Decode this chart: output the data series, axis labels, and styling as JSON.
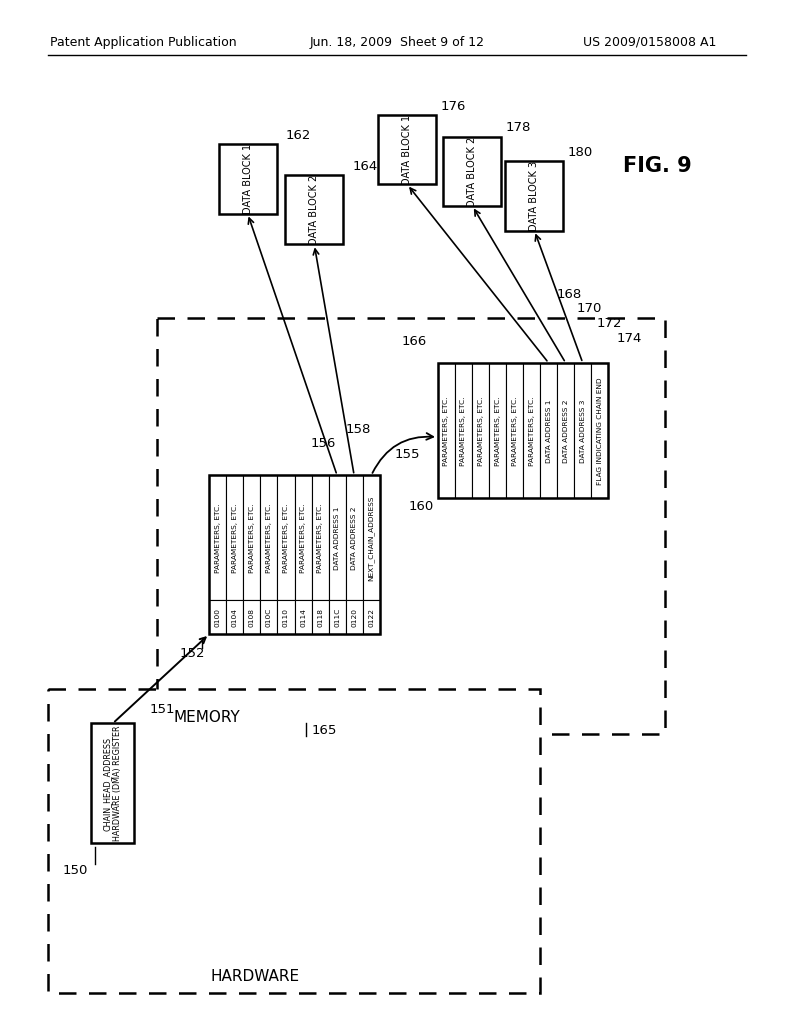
{
  "header_left": "Patent Application Publication",
  "header_center": "Jun. 18, 2009  Sheet 9 of 12",
  "header_right": "US 2009/0158008 A1",
  "bg_color": "#ffffff",
  "table1_rows": [
    [
      "0100",
      "PARAMETERS, ETC."
    ],
    [
      "0104",
      "PARAMETERS, ETC."
    ],
    [
      "0108",
      "PARAMETERS, ETC."
    ],
    [
      "010C",
      "PARAMETERS, ETC."
    ],
    [
      "0110",
      "PARAMETERS, ETC."
    ],
    [
      "0114",
      "PARAMETERS, ETC."
    ],
    [
      "0118",
      "PARAMETERS, ETC."
    ],
    [
      "011C",
      "DATA ADDRESS 1"
    ],
    [
      "0120",
      "DATA ADDRESS 2"
    ],
    [
      "0122",
      "NEXT_CHAIN_ADDRESS"
    ]
  ],
  "table2_rows": [
    "PARAMETERS, ETC.",
    "PARAMETERS, ETC.",
    "PARAMETERS, ETC.",
    "PARAMETERS, ETC.",
    "PARAMETERS, ETC.",
    "PARAMETERS, ETC.",
    "DATA ADDRESS 1",
    "DATA ADDRESS 2",
    "DATA ADDRESS 3",
    "FLAG INDICATING CHAIN END"
  ],
  "fig_label": "FIG. 9",
  "labels": {
    "hardware": "HARDWARE",
    "memory": "MEMORY",
    "hw_reg_line1": "CHAIN_HEAD_ADDRESS",
    "hw_reg_line2": "HARDWARE (DMA) REGISTER"
  },
  "refs": {
    "hw_reg": "150",
    "hw_arrow": "151",
    "table1": "152",
    "table1_box": "155",
    "arr156": "156",
    "arr158": "158",
    "arr160": "160",
    "table2": "166",
    "arr168": "168",
    "arr170": "170",
    "arr172": "172",
    "arr174": "174",
    "memory": "165",
    "db1l": "162",
    "db2l": "164",
    "db1r": "176",
    "db2r": "178",
    "db3r": "180"
  }
}
